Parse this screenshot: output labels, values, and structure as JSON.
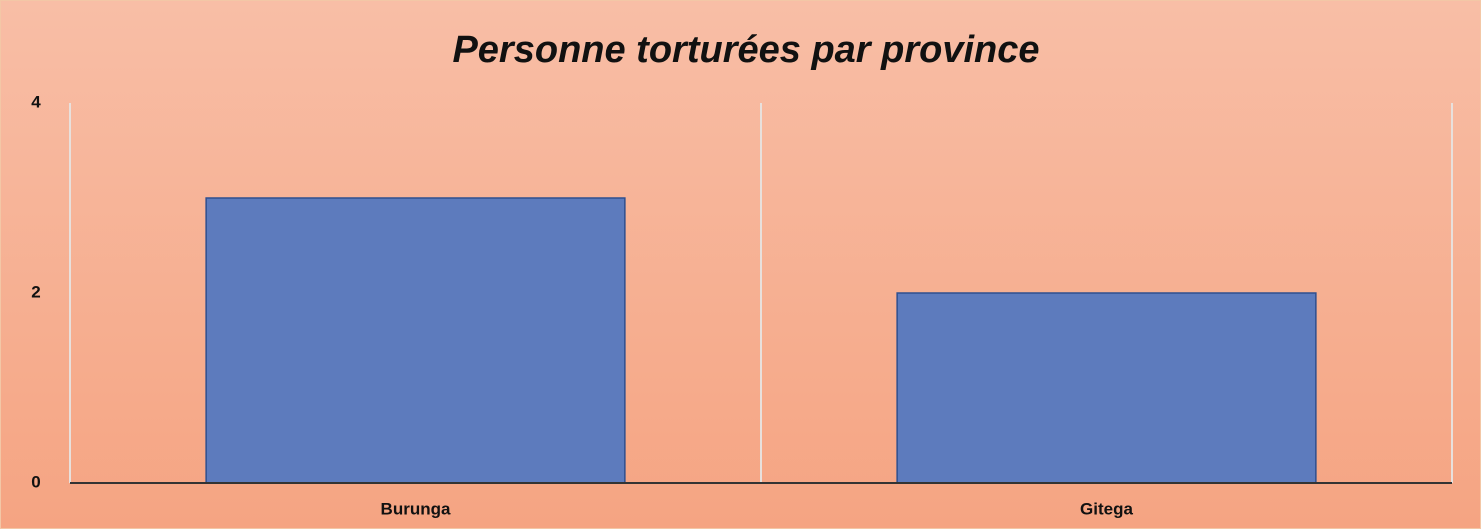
{
  "chart_data": {
    "type": "bar",
    "title": "Personne torturées par province",
    "categories": [
      "Burunga",
      "Gitega"
    ],
    "values": [
      3,
      2
    ],
    "color": "#5d7bbd",
    "ylim": [
      0,
      4
    ],
    "yticks": [
      0,
      2,
      4
    ]
  }
}
